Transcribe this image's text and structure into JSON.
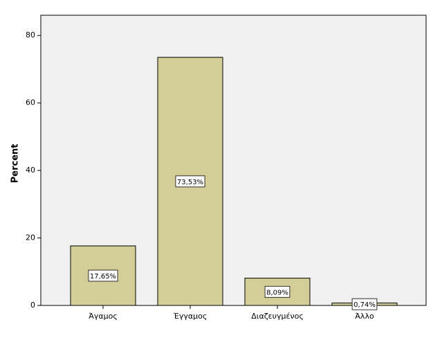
{
  "chart_data": {
    "type": "bar",
    "y_label": "Percent",
    "categories": [
      "Άγαμος",
      "Έγγαμος",
      "Διαζευγμένος",
      "Άλλο"
    ],
    "values": [
      17.65,
      73.53,
      8.09,
      0.74
    ],
    "value_labels": [
      "17,65%",
      "73,53%",
      "8,09%",
      "0,74%"
    ],
    "color": "#d3ce97",
    "ylim": [
      0,
      86
    ],
    "yticks": [
      0,
      20,
      40,
      60,
      80
    ]
  }
}
